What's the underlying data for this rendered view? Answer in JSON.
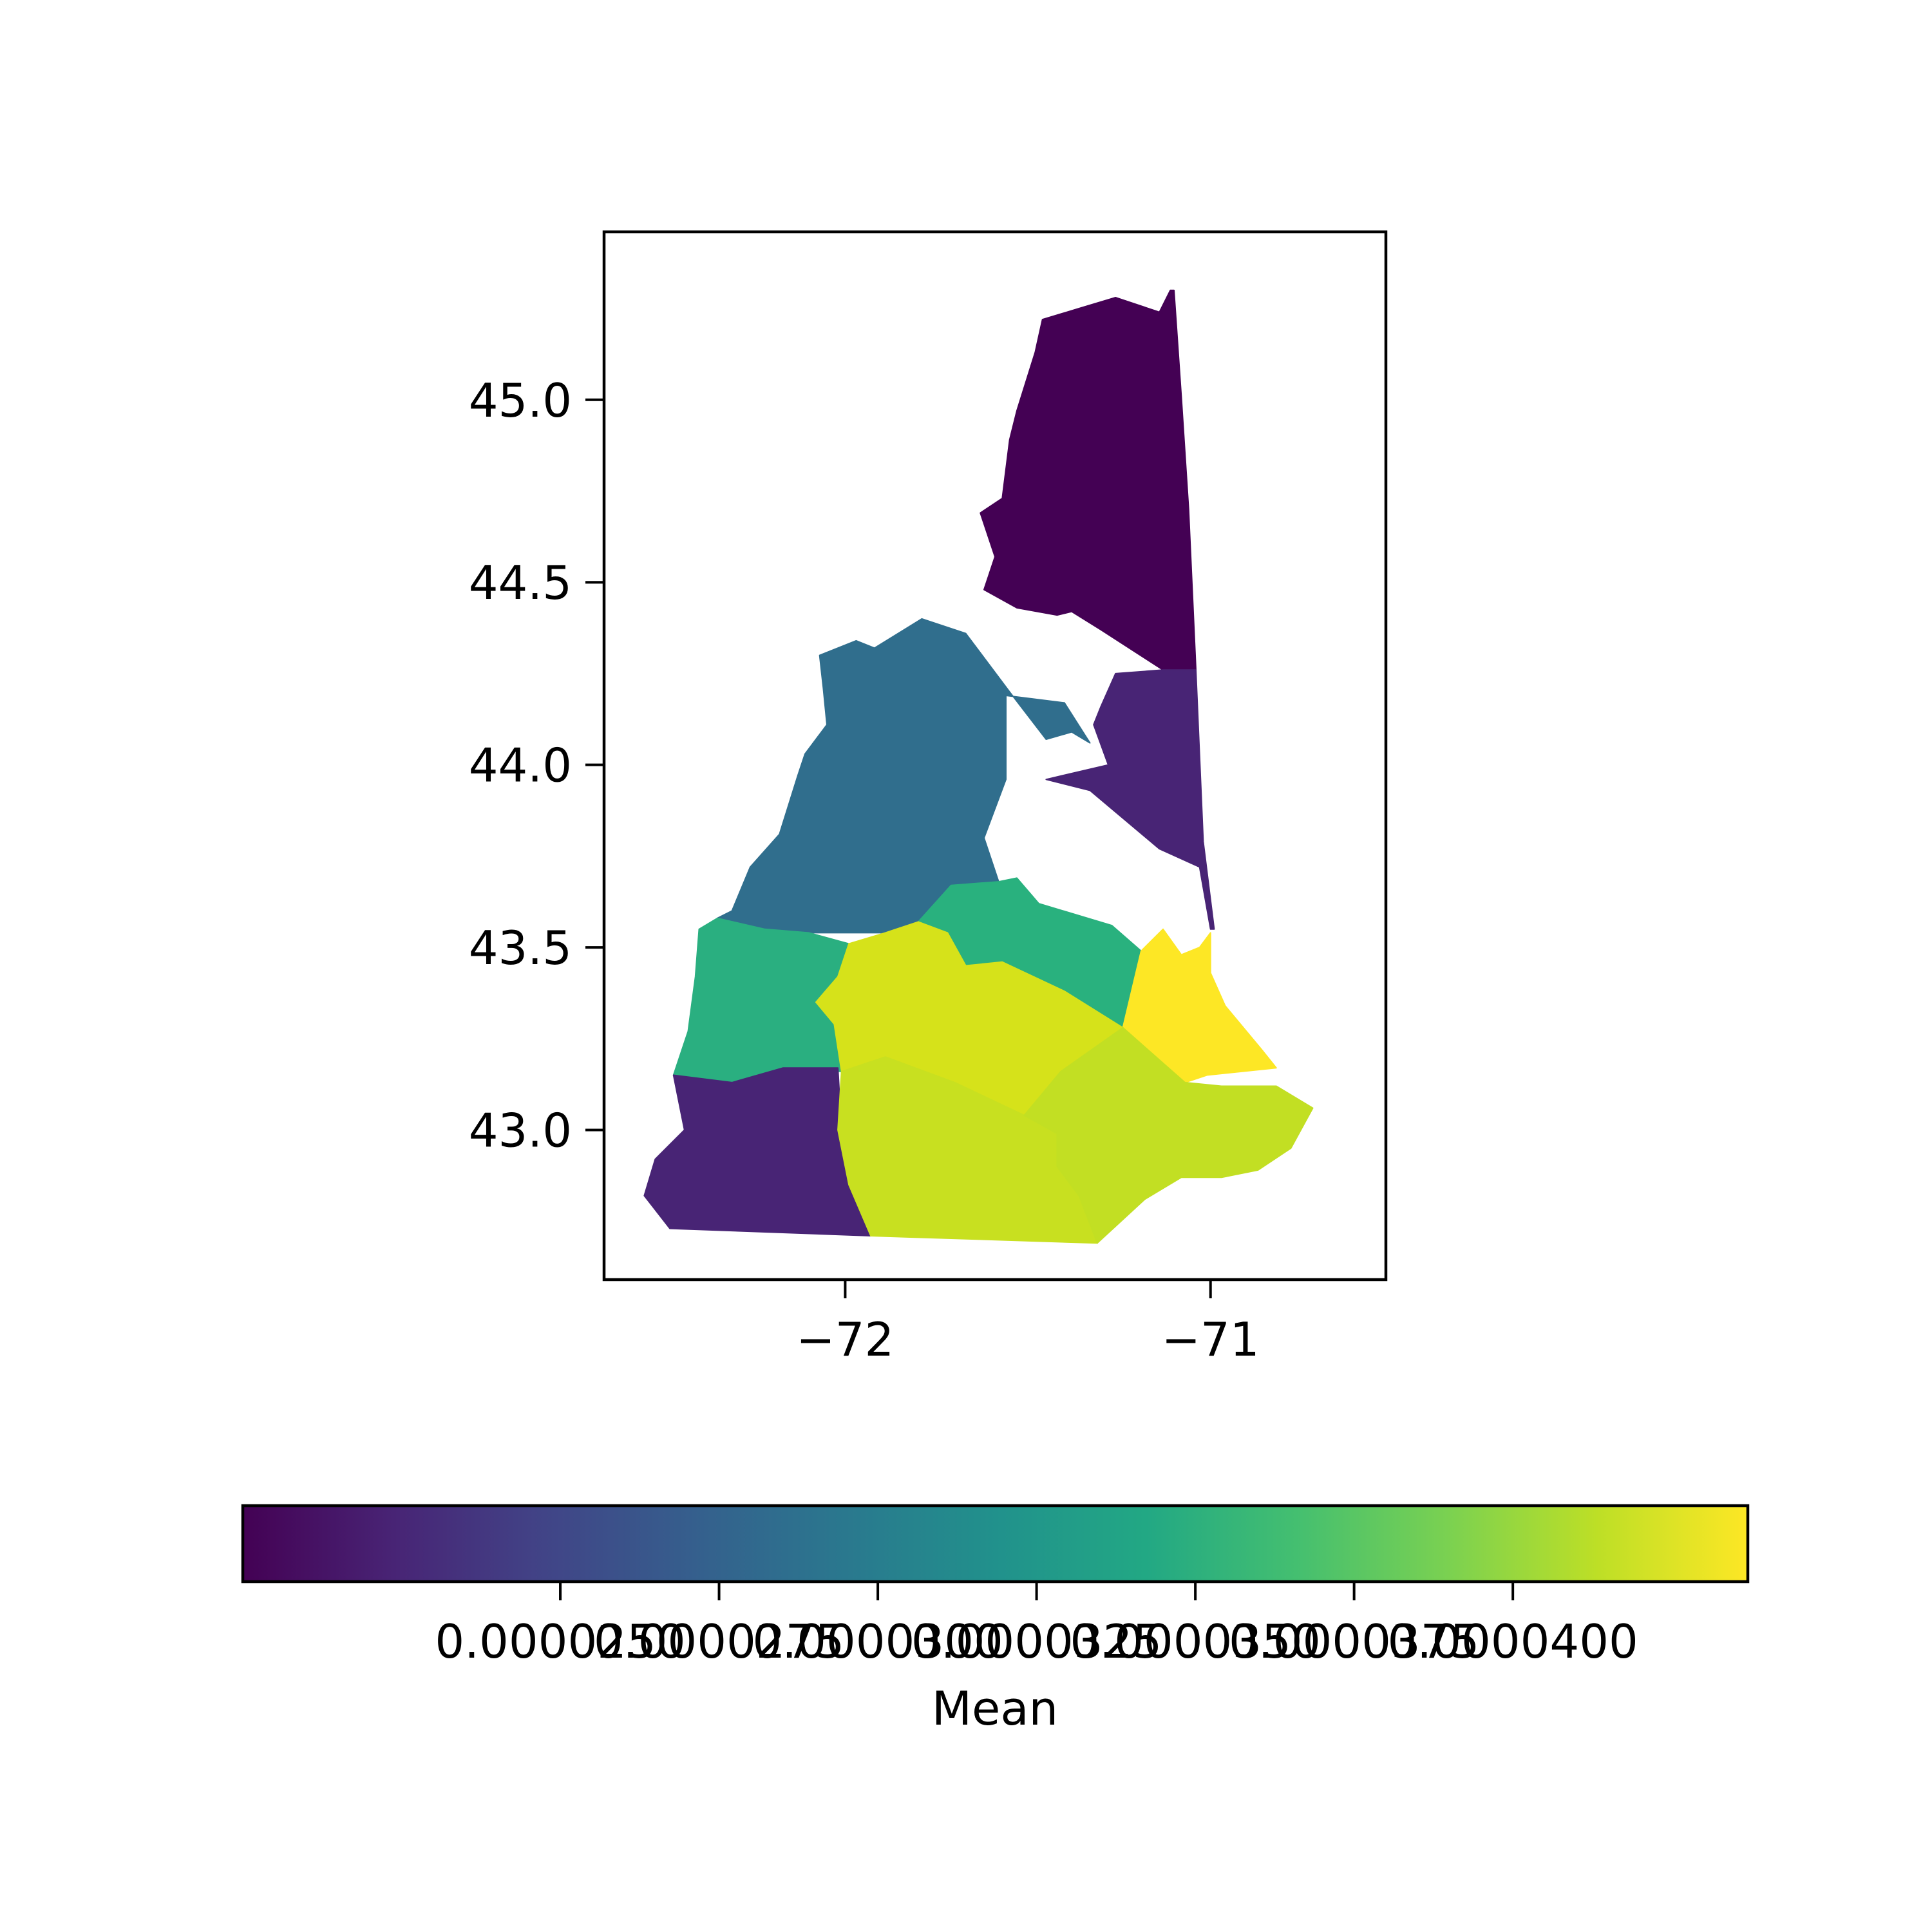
{
  "chart_data": {
    "type": "choropleth",
    "title": "",
    "xlabel": "",
    "ylabel": "",
    "xlim": [
      -72.66,
      -70.52
    ],
    "ylim": [
      42.59,
      45.46
    ],
    "x_ticks": [
      {
        "value": -72,
        "label": "−72"
      },
      {
        "value": -71,
        "label": "−71"
      }
    ],
    "y_ticks": [
      {
        "value": 43.0,
        "label": "43.0"
      },
      {
        "value": 43.5,
        "label": "43.5"
      },
      {
        "value": 44.0,
        "label": "44.0"
      },
      {
        "value": 44.5,
        "label": "44.5"
      },
      {
        "value": 45.0,
        "label": "45.0"
      }
    ],
    "grid": false,
    "colorbar": {
      "label": "Mean",
      "colormap": "viridis",
      "vmin": 2e-05,
      "vmax": 4.37e-05,
      "orientation": "horizontal",
      "placement": "bottom",
      "ticks": [
        {
          "value": 2.5e-05,
          "label": "0.0000250"
        },
        {
          "value": 2.75e-05,
          "label": "0.0000275"
        },
        {
          "value": 3e-05,
          "label": "0.0000300"
        },
        {
          "value": 3.25e-05,
          "label": "0.0000325"
        },
        {
          "value": 3.5e-05,
          "label": "0.0000350"
        },
        {
          "value": 3.75e-05,
          "label": "0.0000375"
        },
        {
          "value": 4e-05,
          "label": "0.0000400"
        }
      ]
    },
    "regions": [
      {
        "id": "coos",
        "value": 2.35e-05,
        "color": "#440154",
        "outline": [
          [
            -71.38,
            44.42
          ],
          [
            -71.3,
            44.37
          ],
          [
            -71.13,
            44.26
          ],
          [
            -71.04,
            44.26
          ],
          [
            -71.06,
            44.7
          ],
          [
            -71.08,
            45.01
          ],
          [
            -71.1,
            45.3
          ],
          [
            -71.11,
            45.3
          ],
          [
            -71.14,
            45.24
          ],
          [
            -71.26,
            45.28
          ],
          [
            -71.36,
            45.25
          ],
          [
            -71.46,
            45.22
          ],
          [
            -71.48,
            45.13
          ],
          [
            -71.53,
            44.97
          ],
          [
            -71.55,
            44.89
          ],
          [
            -71.57,
            44.73
          ],
          [
            -71.63,
            44.69
          ],
          [
            -71.59,
            44.57
          ],
          [
            -71.62,
            44.48
          ],
          [
            -71.53,
            44.43
          ],
          [
            -71.42,
            44.41
          ],
          [
            -71.38,
            44.42
          ]
        ]
      },
      {
        "id": "carroll",
        "value": 2.62e-05,
        "color": "#482475",
        "outline": [
          [
            -71.28,
            44.0
          ],
          [
            -71.45,
            43.96
          ],
          [
            -71.33,
            43.93
          ],
          [
            -71.14,
            43.77
          ],
          [
            -71.03,
            43.72
          ],
          [
            -71.0,
            43.55
          ],
          [
            -70.99,
            43.55
          ],
          [
            -71.02,
            43.79
          ],
          [
            -71.04,
            44.26
          ],
          [
            -71.13,
            44.26
          ],
          [
            -71.26,
            44.25
          ],
          [
            -71.3,
            44.16
          ],
          [
            -71.32,
            44.11
          ],
          [
            -71.28,
            44.0
          ]
        ]
      },
      {
        "id": "grafton",
        "value": 3.08e-05,
        "color": "#306e8d",
        "outline": [
          [
            -71.79,
            44.4
          ],
          [
            -71.92,
            44.32
          ],
          [
            -71.97,
            44.34
          ],
          [
            -72.07,
            44.3
          ],
          [
            -72.06,
            44.21
          ],
          [
            -72.05,
            44.11
          ],
          [
            -72.11,
            44.03
          ],
          [
            -72.13,
            43.97
          ],
          [
            -72.18,
            43.81
          ],
          [
            -72.26,
            43.72
          ],
          [
            -72.31,
            43.6
          ],
          [
            -72.35,
            43.58
          ],
          [
            -72.22,
            43.55
          ],
          [
            -72.1,
            43.54
          ],
          [
            -71.89,
            43.54
          ],
          [
            -71.8,
            43.57
          ],
          [
            -71.71,
            43.67
          ],
          [
            -71.58,
            43.68
          ],
          [
            -71.62,
            43.8
          ],
          [
            -71.56,
            43.96
          ],
          [
            -71.56,
            44.19
          ],
          [
            -71.4,
            44.17
          ],
          [
            -71.33,
            44.06
          ],
          [
            -71.38,
            44.09
          ],
          [
            -71.45,
            44.07
          ],
          [
            -71.55,
            44.2
          ],
          [
            -71.67,
            44.36
          ],
          [
            -71.79,
            44.4
          ]
        ]
      },
      {
        "id": "sullivan",
        "value": 3.45e-05,
        "color": "#2aaf80",
        "outline": [
          [
            -72.35,
            43.58
          ],
          [
            -72.4,
            43.55
          ],
          [
            -72.41,
            43.42
          ],
          [
            -72.43,
            43.27
          ],
          [
            -72.47,
            43.15
          ],
          [
            -72.31,
            43.13
          ],
          [
            -72.17,
            43.17
          ],
          [
            -72.01,
            43.16
          ],
          [
            -72.03,
            43.29
          ],
          [
            -72.08,
            43.35
          ],
          [
            -72.02,
            43.42
          ],
          [
            -71.99,
            43.51
          ],
          [
            -72.1,
            43.54
          ],
          [
            -72.22,
            43.55
          ],
          [
            -72.35,
            43.58
          ]
        ]
      },
      {
        "id": "belknap",
        "value": 3.5e-05,
        "color": "#29b17e",
        "outline": [
          [
            -71.58,
            43.68
          ],
          [
            -71.71,
            43.67
          ],
          [
            -71.8,
            43.57
          ],
          [
            -71.72,
            43.54
          ],
          [
            -71.67,
            43.45
          ],
          [
            -71.57,
            43.46
          ],
          [
            -71.4,
            43.38
          ],
          [
            -71.24,
            43.28
          ],
          [
            -71.19,
            43.49
          ],
          [
            -71.27,
            43.56
          ],
          [
            -71.47,
            43.62
          ],
          [
            -71.53,
            43.69
          ],
          [
            -71.58,
            43.68
          ]
        ]
      },
      {
        "id": "strafford",
        "value": 4.3e-05,
        "color": "#fde725",
        "outline": [
          [
            -71.19,
            43.49
          ],
          [
            -71.24,
            43.28
          ],
          [
            -71.07,
            43.13
          ],
          [
            -71.01,
            43.15
          ],
          [
            -70.82,
            43.17
          ],
          [
            -70.86,
            43.22
          ],
          [
            -70.96,
            43.34
          ],
          [
            -71.0,
            43.43
          ],
          [
            -71.0,
            43.54
          ],
          [
            -71.03,
            43.5
          ],
          [
            -71.08,
            43.48
          ],
          [
            -71.13,
            43.55
          ],
          [
            -71.19,
            43.49
          ]
        ]
      },
      {
        "id": "merrimack",
        "value": 4.15e-05,
        "color": "#d6e21a",
        "outline": [
          [
            -71.99,
            43.51
          ],
          [
            -72.02,
            43.42
          ],
          [
            -72.08,
            43.35
          ],
          [
            -72.03,
            43.29
          ],
          [
            -72.01,
            43.16
          ],
          [
            -71.89,
            43.2
          ],
          [
            -71.7,
            43.13
          ],
          [
            -71.51,
            43.04
          ],
          [
            -71.41,
            43.16
          ],
          [
            -71.24,
            43.28
          ],
          [
            -71.4,
            43.38
          ],
          [
            -71.57,
            43.46
          ],
          [
            -71.67,
            43.45
          ],
          [
            -71.72,
            43.54
          ],
          [
            -71.8,
            43.57
          ],
          [
            -71.89,
            43.54
          ],
          [
            -71.99,
            43.51
          ]
        ]
      },
      {
        "id": "cheshire",
        "value": 2.62e-05,
        "color": "#482475",
        "outline": [
          [
            -72.47,
            43.15
          ],
          [
            -72.44,
            43.0
          ],
          [
            -72.52,
            42.92
          ],
          [
            -72.55,
            42.82
          ],
          [
            -72.48,
            42.73
          ],
          [
            -71.93,
            42.71
          ],
          [
            -71.99,
            42.85
          ],
          [
            -72.01,
            43.0
          ],
          [
            -72.02,
            43.17
          ],
          [
            -72.17,
            43.17
          ],
          [
            -72.31,
            43.13
          ],
          [
            -72.47,
            43.15
          ]
        ]
      },
      {
        "id": "hillsborough",
        "value": 4e-05,
        "color": "#c8e020",
        "outline": [
          [
            -72.01,
            43.16
          ],
          [
            -72.02,
            43.0
          ],
          [
            -71.99,
            42.85
          ],
          [
            -71.93,
            42.71
          ],
          [
            -71.31,
            42.69
          ],
          [
            -71.36,
            42.82
          ],
          [
            -71.42,
            42.9
          ],
          [
            -71.42,
            42.99
          ],
          [
            -71.51,
            43.04
          ],
          [
            -71.7,
            43.13
          ],
          [
            -71.89,
            43.2
          ],
          [
            -72.01,
            43.16
          ]
        ]
      },
      {
        "id": "rockingham",
        "value": 3.95e-05,
        "color": "#c2df23",
        "outline": [
          [
            -71.24,
            43.28
          ],
          [
            -71.41,
            43.16
          ],
          [
            -71.51,
            43.04
          ],
          [
            -71.42,
            42.99
          ],
          [
            -71.42,
            42.9
          ],
          [
            -71.36,
            42.82
          ],
          [
            -71.31,
            42.69
          ],
          [
            -71.18,
            42.81
          ],
          [
            -71.08,
            42.87
          ],
          [
            -70.97,
            42.87
          ],
          [
            -70.87,
            42.89
          ],
          [
            -70.78,
            42.95
          ],
          [
            -70.72,
            43.06
          ],
          [
            -70.82,
            43.12
          ],
          [
            -70.97,
            43.12
          ],
          [
            -71.07,
            43.13
          ],
          [
            -71.24,
            43.28
          ]
        ]
      }
    ]
  }
}
